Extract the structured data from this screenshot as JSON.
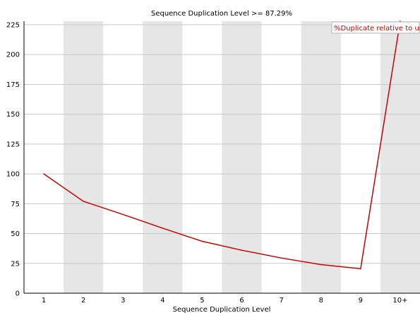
{
  "chart_data": {
    "type": "line",
    "title": "Sequence Duplication Level >= 87.29%",
    "xlabel": "Sequence Duplication Level",
    "ylabel": "",
    "categories": [
      "1",
      "2",
      "3",
      "4",
      "5",
      "6",
      "7",
      "8",
      "9",
      "10+"
    ],
    "y_ticks": [
      "0",
      "25",
      "50",
      "75",
      "100",
      "125",
      "150",
      "175",
      "200",
      "225"
    ],
    "ylim": [
      0,
      225
    ],
    "grid": true,
    "alternating_bands": true,
    "legend_position": "top-right",
    "series": [
      {
        "name": "%Duplicate relative to unique",
        "color": "#cc0000",
        "values": [
          100,
          77,
          66,
          54.5,
          43.5,
          36,
          29.5,
          24,
          20.5,
          228
        ]
      }
    ],
    "colors": {
      "band": "#e6e6e6",
      "grid": "#c8c8c8",
      "axis": "#000000",
      "series": "#cc0000"
    }
  }
}
